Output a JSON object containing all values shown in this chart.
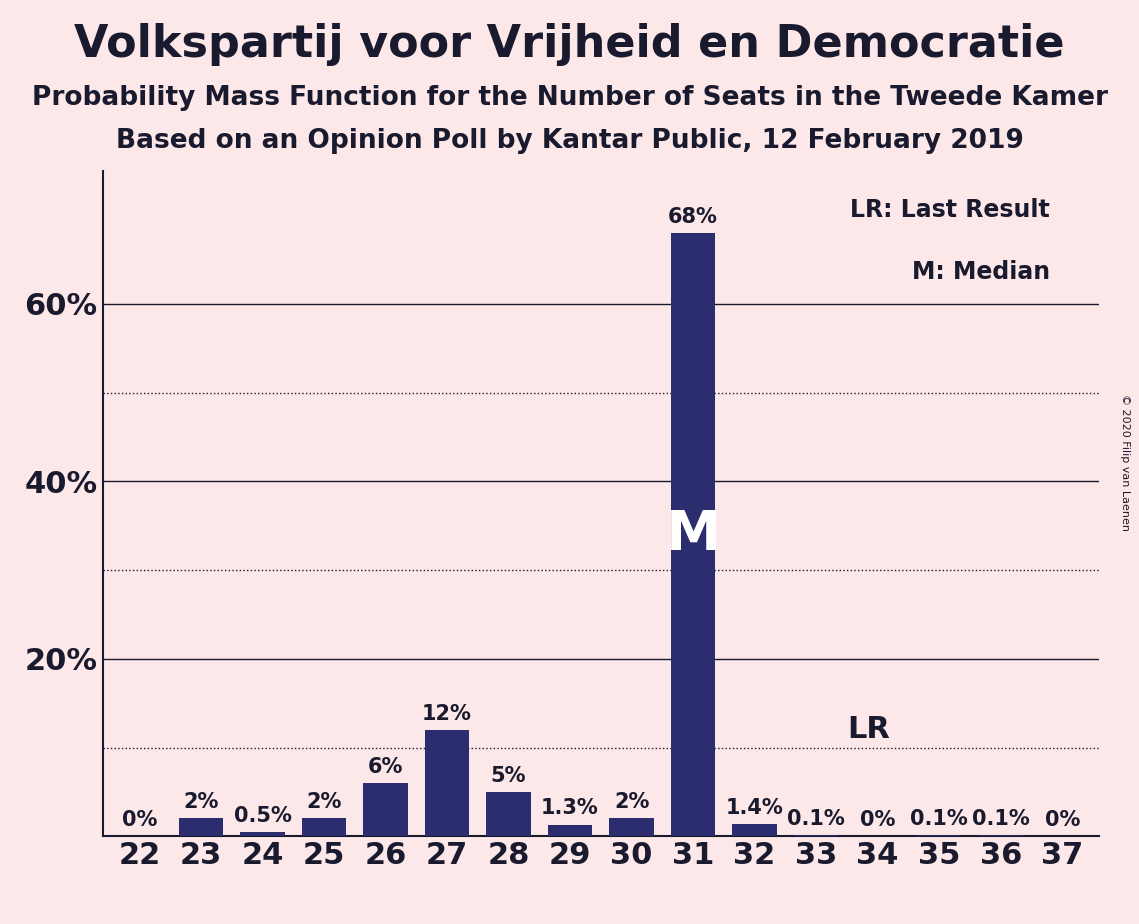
{
  "title": "Volkspartij voor Vrijheid en Democratie",
  "subtitle1": "Probability Mass Function for the Number of Seats in the Tweede Kamer",
  "subtitle2": "Based on an Opinion Poll by Kantar Public, 12 February 2019",
  "copyright": "© 2020 Filip van Laenen",
  "categories": [
    22,
    23,
    24,
    25,
    26,
    27,
    28,
    29,
    30,
    31,
    32,
    33,
    34,
    35,
    36,
    37
  ],
  "values": [
    0.0,
    2.0,
    0.5,
    2.0,
    6.0,
    12.0,
    5.0,
    1.3,
    2.0,
    68.0,
    1.4,
    0.1,
    0.0,
    0.1,
    0.1,
    0.0
  ],
  "bar_color": "#2b2d6e",
  "background_color": "#fce8e8",
  "text_color": "#1a1a2e",
  "median_seat": 31,
  "last_result_value": 10.0,
  "ylim": [
    0,
    75
  ],
  "solid_lines": [
    20,
    40,
    60
  ],
  "dotted_lines": [
    10,
    30,
    50
  ],
  "title_fontsize": 32,
  "subtitle_fontsize": 19,
  "bar_label_fontsize": 15,
  "axis_tick_fontsize": 22,
  "legend_fontsize": 17,
  "m_fontsize": 40,
  "lr_label_fontsize": 22
}
